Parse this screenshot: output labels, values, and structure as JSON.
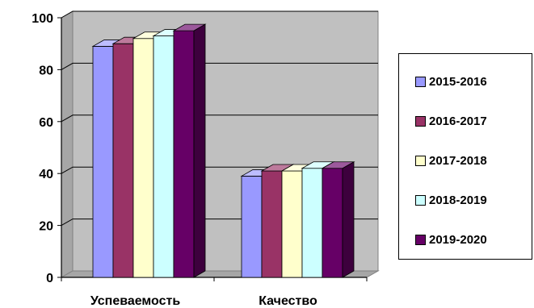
{
  "chart_data": {
    "type": "bar",
    "categories": [
      "Успеваемость",
      "Качество"
    ],
    "series": [
      {
        "name": "2015-2016",
        "values": [
          89,
          39
        ],
        "color": "#9999ff"
      },
      {
        "name": "2016-2017",
        "values": [
          90,
          41
        ],
        "color": "#993366"
      },
      {
        "name": "2017-2018",
        "values": [
          92,
          41
        ],
        "color": "#ffffcc"
      },
      {
        "name": "2018-2019",
        "values": [
          93,
          42
        ],
        "color": "#ccffff"
      },
      {
        "name": "2019-2020",
        "values": [
          95,
          42
        ],
        "color": "#660066"
      }
    ],
    "ylim": [
      0,
      100
    ],
    "yticks": [
      0,
      20,
      40,
      60,
      80,
      100
    ],
    "grid": true,
    "plot_background": "#c0c0c0",
    "legend_position": "right",
    "three_d": true
  }
}
